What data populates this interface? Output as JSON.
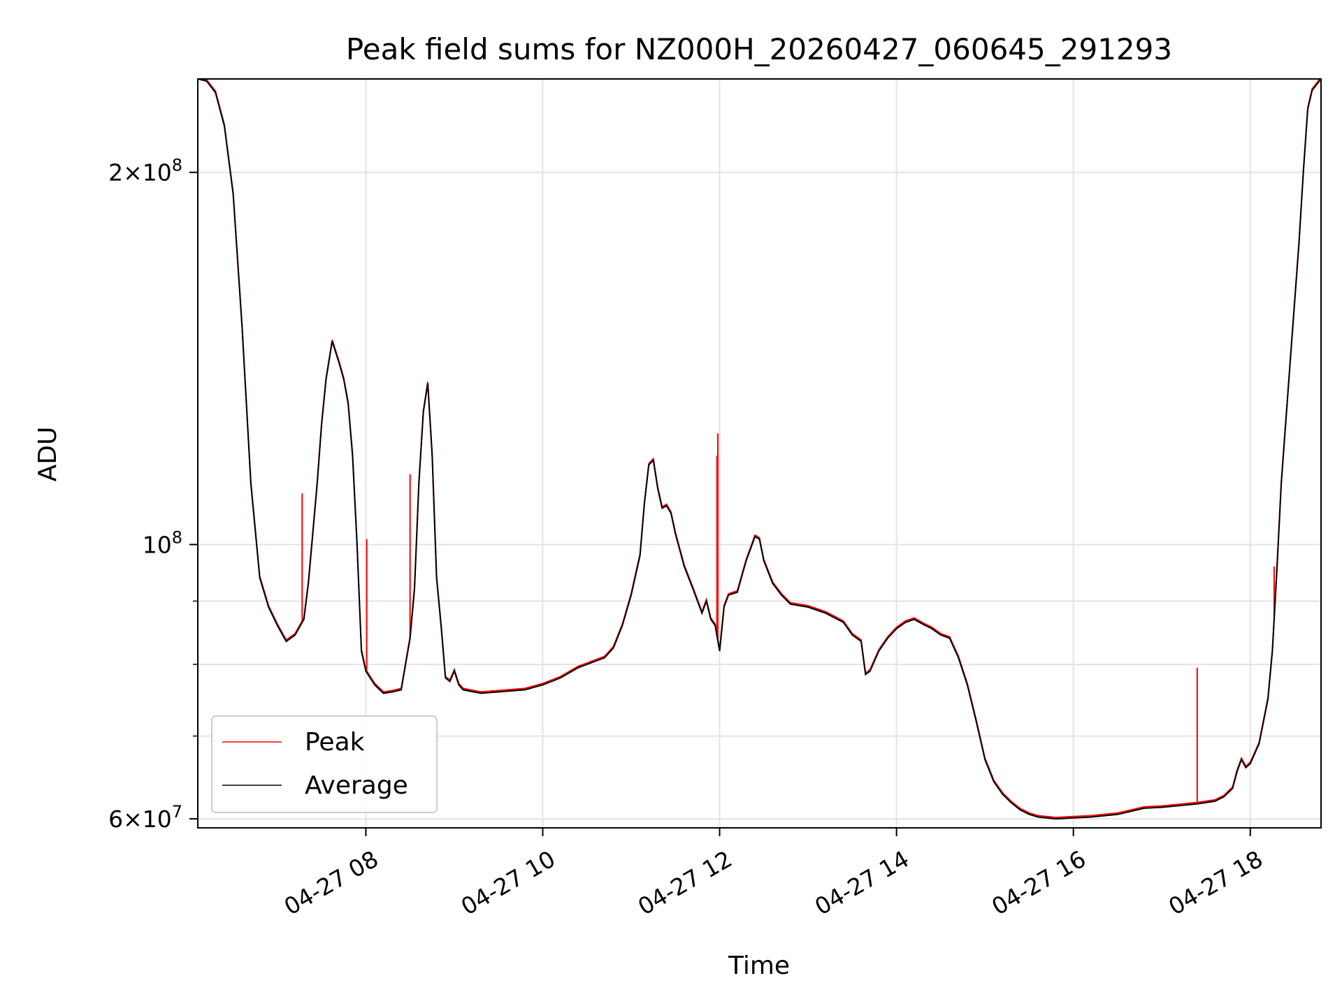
{
  "chart_data": {
    "type": "line",
    "title": "Peak field sums for NZ000H_20260427_060645_291293",
    "xlabel": "Time",
    "ylabel": "ADU",
    "yscale": "log",
    "xlim_hours": [
      6.1,
      18.8
    ],
    "ylim": [
      59000000,
      238000000
    ],
    "grid": true,
    "x_ticks": [
      {
        "value": 8,
        "label": "04-27 08"
      },
      {
        "value": 10,
        "label": "04-27 10"
      },
      {
        "value": 12,
        "label": "04-27 12"
      },
      {
        "value": 14,
        "label": "04-27 14"
      },
      {
        "value": 16,
        "label": "04-27 16"
      },
      {
        "value": 18,
        "label": "04-27 18"
      }
    ],
    "y_major_ticks": [
      {
        "value": 60000000,
        "base": "6×10",
        "exp": "7"
      },
      {
        "value": 100000000,
        "base": "10",
        "exp": "8"
      },
      {
        "value": 200000000,
        "base": "2×10",
        "exp": "8"
      }
    ],
    "y_minor_ticks": [
      70000000,
      80000000,
      90000000
    ],
    "legend": {
      "position": "lower left"
    },
    "series": [
      {
        "name": "Peak",
        "color": "#ff0000"
      },
      {
        "name": "Average",
        "color": "#000000"
      }
    ],
    "average_curve": [
      [
        6.1,
        238
      ],
      [
        6.2,
        237
      ],
      [
        6.3,
        232
      ],
      [
        6.4,
        218
      ],
      [
        6.5,
        192
      ],
      [
        6.6,
        150
      ],
      [
        6.7,
        112
      ],
      [
        6.8,
        94
      ],
      [
        6.9,
        89
      ],
      [
        7.0,
        86
      ],
      [
        7.1,
        83.5
      ],
      [
        7.2,
        84.5
      ],
      [
        7.3,
        87
      ],
      [
        7.35,
        93
      ],
      [
        7.4,
        102
      ],
      [
        7.45,
        112
      ],
      [
        7.5,
        125
      ],
      [
        7.55,
        136
      ],
      [
        7.62,
        146
      ],
      [
        7.7,
        140
      ],
      [
        7.75,
        136
      ],
      [
        7.8,
        130
      ],
      [
        7.85,
        118
      ],
      [
        7.9,
        100
      ],
      [
        7.95,
        82
      ],
      [
        8.0,
        79
      ],
      [
        8.05,
        78
      ],
      [
        8.1,
        77
      ],
      [
        8.2,
        75.8
      ],
      [
        8.3,
        76
      ],
      [
        8.4,
        76.3
      ],
      [
        8.5,
        84
      ],
      [
        8.55,
        92
      ],
      [
        8.6,
        112
      ],
      [
        8.65,
        128
      ],
      [
        8.7,
        135
      ],
      [
        8.75,
        118
      ],
      [
        8.8,
        94
      ],
      [
        8.85,
        86
      ],
      [
        8.9,
        78
      ],
      [
        8.95,
        77.5
      ],
      [
        9.0,
        79
      ],
      [
        9.05,
        77
      ],
      [
        9.1,
        76.3
      ],
      [
        9.3,
        75.8
      ],
      [
        9.5,
        76
      ],
      [
        9.8,
        76.3
      ],
      [
        10.0,
        77
      ],
      [
        10.2,
        78
      ],
      [
        10.4,
        79.5
      ],
      [
        10.5,
        80
      ],
      [
        10.7,
        81
      ],
      [
        10.8,
        82.5
      ],
      [
        10.9,
        86
      ],
      [
        11.0,
        91
      ],
      [
        11.1,
        98
      ],
      [
        11.15,
        108
      ],
      [
        11.2,
        116
      ],
      [
        11.25,
        117
      ],
      [
        11.3,
        111
      ],
      [
        11.35,
        107
      ],
      [
        11.4,
        107.5
      ],
      [
        11.45,
        106
      ],
      [
        11.5,
        102
      ],
      [
        11.6,
        96
      ],
      [
        11.7,
        92
      ],
      [
        11.8,
        88
      ],
      [
        11.85,
        90
      ],
      [
        11.9,
        87
      ],
      [
        11.95,
        86
      ],
      [
        12.0,
        82
      ],
      [
        12.05,
        89
      ],
      [
        12.1,
        91
      ],
      [
        12.2,
        91.5
      ],
      [
        12.3,
        97
      ],
      [
        12.4,
        101.5
      ],
      [
        12.45,
        101
      ],
      [
        12.5,
        97
      ],
      [
        12.6,
        93
      ],
      [
        12.7,
        91
      ],
      [
        12.8,
        89.5
      ],
      [
        13.0,
        89
      ],
      [
        13.2,
        88
      ],
      [
        13.4,
        86.5
      ],
      [
        13.5,
        84.5
      ],
      [
        13.6,
        83.5
      ],
      [
        13.65,
        78.5
      ],
      [
        13.7,
        79
      ],
      [
        13.8,
        82
      ],
      [
        13.9,
        84
      ],
      [
        14.0,
        85.5
      ],
      [
        14.1,
        86.5
      ],
      [
        14.2,
        87
      ],
      [
        14.3,
        86.2
      ],
      [
        14.4,
        85.5
      ],
      [
        14.5,
        84.5
      ],
      [
        14.6,
        84
      ],
      [
        14.7,
        81
      ],
      [
        14.8,
        77
      ],
      [
        14.9,
        72
      ],
      [
        15.0,
        67
      ],
      [
        15.1,
        64.3
      ],
      [
        15.2,
        62.8
      ],
      [
        15.3,
        61.8
      ],
      [
        15.4,
        61
      ],
      [
        15.5,
        60.5
      ],
      [
        15.6,
        60.2
      ],
      [
        15.8,
        60
      ],
      [
        16.0,
        60.1
      ],
      [
        16.2,
        60.2
      ],
      [
        16.5,
        60.5
      ],
      [
        16.8,
        61.2
      ],
      [
        17.0,
        61.3
      ],
      [
        17.2,
        61.5
      ],
      [
        17.4,
        61.7
      ],
      [
        17.6,
        62
      ],
      [
        17.7,
        62.5
      ],
      [
        17.8,
        63.5
      ],
      [
        17.85,
        65.5
      ],
      [
        17.9,
        67
      ],
      [
        17.95,
        66
      ],
      [
        18.0,
        66.5
      ],
      [
        18.1,
        69
      ],
      [
        18.2,
        75
      ],
      [
        18.25,
        82
      ],
      [
        18.3,
        95
      ],
      [
        18.35,
        112
      ],
      [
        18.45,
        140
      ],
      [
        18.55,
        175
      ],
      [
        18.6,
        200
      ],
      [
        18.65,
        225
      ],
      [
        18.7,
        233
      ],
      [
        18.8,
        238
      ]
    ],
    "peak_spikes": [
      [
        7.28,
        110
      ],
      [
        8.01,
        101
      ],
      [
        8.5,
        114
      ],
      [
        11.97,
        118
      ],
      [
        11.98,
        123
      ],
      [
        17.4,
        79.5
      ],
      [
        18.27,
        96
      ]
    ]
  }
}
